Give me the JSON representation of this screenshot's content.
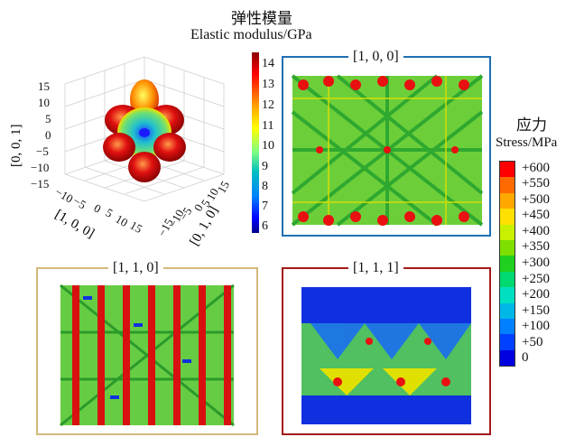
{
  "modulus_title_cn": "弹性模量",
  "modulus_title_en": "Elastic modulus/GPa",
  "modulus_colorbar": {
    "ticks": [
      "14",
      "13",
      "12",
      "11",
      "10",
      "9",
      "8",
      "7",
      "6"
    ],
    "gradient": [
      "#8b0000",
      "#ff0000",
      "#ffa500",
      "#ffff00",
      "#80ff80",
      "#00c0c0",
      "#0080ff",
      "#0000ff",
      "#00008b"
    ]
  },
  "surface_plot": {
    "z_label": "[0, 0, 1]",
    "x_label": "[1, 0, 0]",
    "y_label": "[0, 1, 0]",
    "z_ticks": [
      "15",
      "10",
      "5",
      "0",
      "−5",
      "−10",
      "−15"
    ],
    "x_ticks": [
      "−10",
      "−5",
      "0",
      "5",
      "10",
      "15"
    ],
    "y_ticks": [
      "15",
      "10",
      "5",
      "0",
      "−5",
      "−10",
      "−15"
    ]
  },
  "panels": {
    "p100": {
      "label": "[1, 0, 0]",
      "border_color": "#1f6fb2"
    },
    "p110": {
      "label": "[1, 1, 0]",
      "border_color": "#d4b97a"
    },
    "p111": {
      "label": "[1, 1, 1]",
      "border_color": "#a31a1a"
    }
  },
  "stress_title_cn": "应力",
  "stress_title_en": "Stress/MPa",
  "stress_legend": [
    {
      "label": "+600",
      "color": "#ff0000"
    },
    {
      "label": "+550",
      "color": "#ff6a00"
    },
    {
      "label": "+500",
      "color": "#ffa800"
    },
    {
      "label": "+450",
      "color": "#ffe000"
    },
    {
      "label": "+400",
      "color": "#c8f000"
    },
    {
      "label": "+350",
      "color": "#7de000"
    },
    {
      "label": "+300",
      "color": "#20d020"
    },
    {
      "label": "+250",
      "color": "#00d870"
    },
    {
      "label": "+200",
      "color": "#00e0c0"
    },
    {
      "label": "+150",
      "color": "#00b8e8"
    },
    {
      "label": "+100",
      "color": "#0080ff"
    },
    {
      "label": "+50",
      "color": "#0040ff"
    },
    {
      "label": "0",
      "color": "#0000e0"
    }
  ]
}
